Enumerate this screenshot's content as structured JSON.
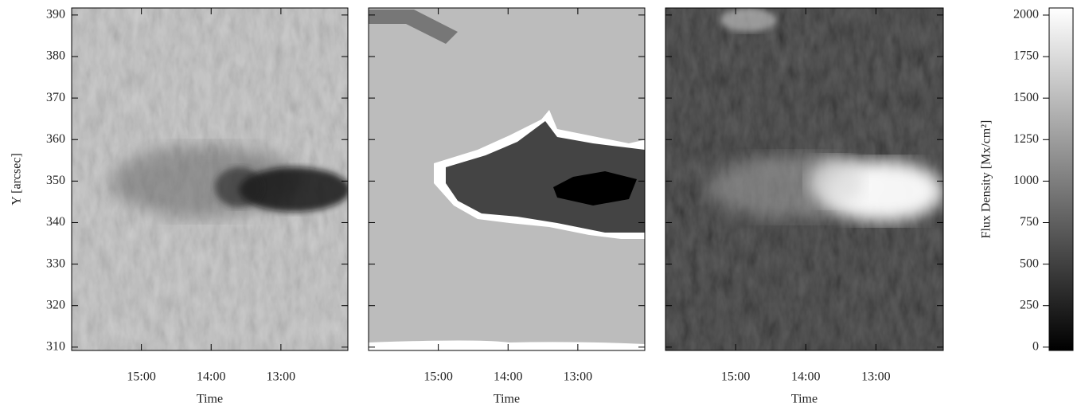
{
  "chart_data": {
    "type": "heatmap",
    "ylabel": "Y [arcsec]",
    "xlabel": "Time",
    "ylim": [
      309.2,
      391.7
    ],
    "yticks": [
      310,
      320,
      330,
      340,
      350,
      360,
      370,
      380,
      390
    ],
    "xlim": [
      16.0,
      12.04
    ],
    "xticks": [
      {
        "value": 15,
        "label": "15:00"
      },
      {
        "value": 14,
        "label": "14:00"
      },
      {
        "value": 13,
        "label": "13:00"
      }
    ],
    "colorbar": {
      "label": "Flux Density [Mx/cm²]",
      "lim": [
        -20,
        2043
      ],
      "ticks": [
        0,
        250,
        500,
        750,
        1000,
        1250,
        1500,
        1750,
        2000
      ]
    }
  }
}
